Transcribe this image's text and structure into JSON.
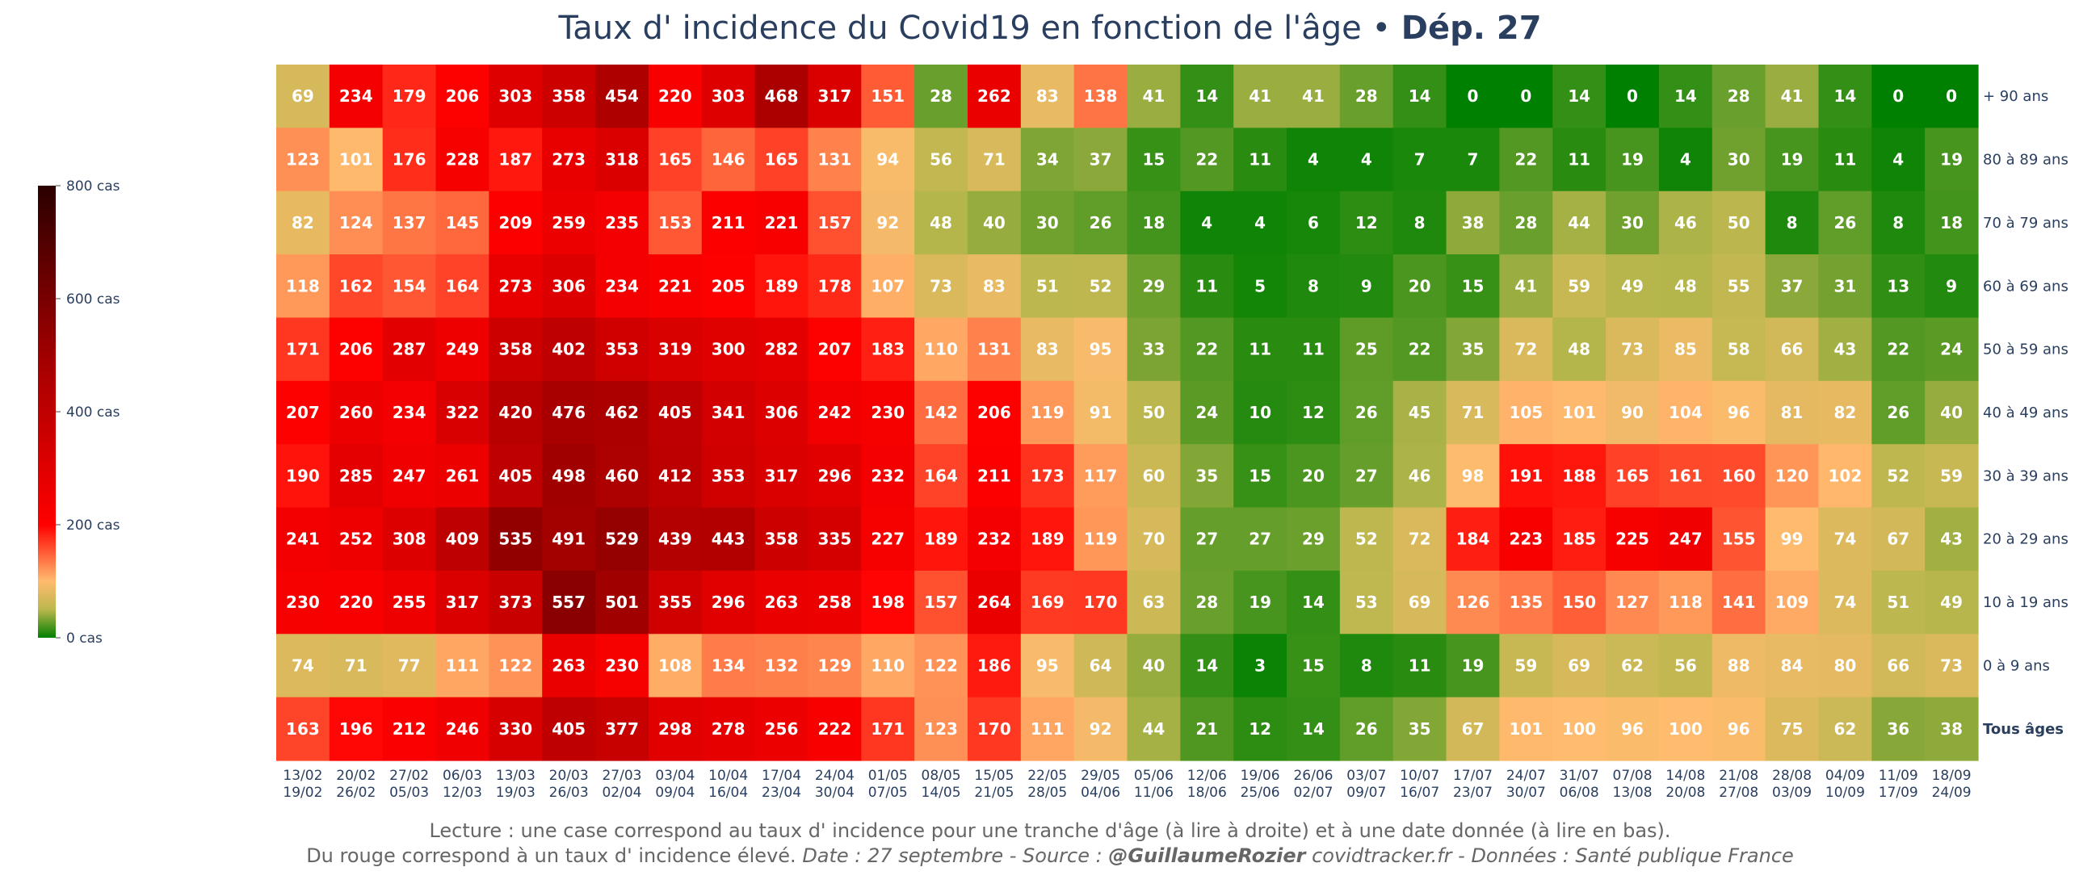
{
  "chart_data": {
    "type": "heatmap",
    "title": "Taux d' incidence du Covid19 en fonction de l'âge",
    "title_separator": "•",
    "title_bold": "Dép. 27",
    "x_labels": [
      [
        "13/02",
        "19/02"
      ],
      [
        "20/02",
        "26/02"
      ],
      [
        "27/02",
        "05/03"
      ],
      [
        "06/03",
        "12/03"
      ],
      [
        "13/03",
        "19/03"
      ],
      [
        "20/03",
        "26/03"
      ],
      [
        "27/03",
        "02/04"
      ],
      [
        "03/04",
        "09/04"
      ],
      [
        "10/04",
        "16/04"
      ],
      [
        "17/04",
        "23/04"
      ],
      [
        "24/04",
        "30/04"
      ],
      [
        "01/05",
        "07/05"
      ],
      [
        "08/05",
        "14/05"
      ],
      [
        "15/05",
        "21/05"
      ],
      [
        "22/05",
        "28/05"
      ],
      [
        "29/05",
        "04/06"
      ],
      [
        "05/06",
        "11/06"
      ],
      [
        "12/06",
        "18/06"
      ],
      [
        "19/06",
        "25/06"
      ],
      [
        "26/06",
        "02/07"
      ],
      [
        "03/07",
        "09/07"
      ],
      [
        "10/07",
        "16/07"
      ],
      [
        "17/07",
        "23/07"
      ],
      [
        "24/07",
        "30/07"
      ],
      [
        "31/07",
        "06/08"
      ],
      [
        "07/08",
        "13/08"
      ],
      [
        "14/08",
        "20/08"
      ],
      [
        "21/08",
        "27/08"
      ],
      [
        "28/08",
        "03/09"
      ],
      [
        "04/09",
        "10/09"
      ],
      [
        "11/09",
        "17/09"
      ],
      [
        "18/09",
        "24/09"
      ]
    ],
    "y_labels": [
      "+ 90 ans",
      "80 à 89 ans",
      "70 à 79 ans",
      "60 à 69 ans",
      "50 à 59 ans",
      "40 à 49 ans",
      "30 à 39 ans",
      "20 à 29 ans",
      "10 à 19 ans",
      "0 à 9 ans",
      "Tous âges"
    ],
    "values": [
      [
        69,
        234,
        179,
        206,
        303,
        358,
        454,
        220,
        303,
        468,
        317,
        151,
        28,
        262,
        83,
        138,
        41,
        14,
        41,
        41,
        28,
        14,
        0,
        0,
        14,
        0,
        14,
        28,
        41,
        14,
        0,
        0
      ],
      [
        123,
        101,
        176,
        228,
        187,
        273,
        318,
        165,
        146,
        165,
        131,
        94,
        56,
        71,
        34,
        37,
        15,
        22,
        11,
        4,
        4,
        7,
        7,
        22,
        11,
        19,
        4,
        30,
        19,
        11,
        4,
        19
      ],
      [
        82,
        124,
        137,
        145,
        209,
        259,
        235,
        153,
        211,
        221,
        157,
        92,
        48,
        40,
        30,
        26,
        18,
        4,
        4,
        6,
        12,
        8,
        38,
        28,
        44,
        30,
        46,
        50,
        8,
        26,
        8,
        18
      ],
      [
        118,
        162,
        154,
        164,
        273,
        306,
        234,
        221,
        205,
        189,
        178,
        107,
        73,
        83,
        51,
        52,
        29,
        11,
        5,
        8,
        9,
        20,
        15,
        41,
        59,
        49,
        48,
        55,
        37,
        31,
        13,
        9
      ],
      [
        171,
        206,
        287,
        249,
        358,
        402,
        353,
        319,
        300,
        282,
        207,
        183,
        110,
        131,
        83,
        95,
        33,
        22,
        11,
        11,
        25,
        22,
        35,
        72,
        48,
        73,
        85,
        58,
        66,
        43,
        22,
        24
      ],
      [
        207,
        260,
        234,
        322,
        420,
        476,
        462,
        405,
        341,
        306,
        242,
        230,
        142,
        206,
        119,
        91,
        50,
        24,
        10,
        12,
        26,
        45,
        71,
        105,
        101,
        90,
        104,
        96,
        81,
        82,
        26,
        40
      ],
      [
        190,
        285,
        247,
        261,
        405,
        498,
        460,
        412,
        353,
        317,
        296,
        232,
        164,
        211,
        173,
        117,
        60,
        35,
        15,
        20,
        27,
        46,
        98,
        191,
        188,
        165,
        161,
        160,
        120,
        102,
        52,
        59
      ],
      [
        241,
        252,
        308,
        409,
        535,
        491,
        529,
        439,
        443,
        358,
        335,
        227,
        189,
        232,
        189,
        119,
        70,
        27,
        27,
        29,
        52,
        72,
        184,
        223,
        185,
        225,
        247,
        155,
        99,
        74,
        67,
        43
      ],
      [
        230,
        220,
        255,
        317,
        373,
        557,
        501,
        355,
        296,
        263,
        258,
        198,
        157,
        264,
        169,
        170,
        63,
        28,
        19,
        14,
        53,
        69,
        126,
        135,
        150,
        127,
        118,
        141,
        109,
        74,
        51,
        49
      ],
      [
        74,
        71,
        77,
        111,
        122,
        263,
        230,
        108,
        134,
        132,
        129,
        110,
        122,
        186,
        95,
        64,
        40,
        14,
        3,
        15,
        8,
        11,
        19,
        59,
        69,
        62,
        56,
        88,
        84,
        80,
        66,
        73
      ],
      [
        163,
        196,
        212,
        246,
        330,
        405,
        377,
        298,
        278,
        256,
        222,
        171,
        123,
        170,
        111,
        92,
        44,
        21,
        12,
        14,
        26,
        35,
        67,
        101,
        100,
        96,
        100,
        96,
        75,
        62,
        36,
        38
      ]
    ],
    "zmin": 0,
    "zmax": 800,
    "colorscale": [
      [
        0,
        "#008000"
      ],
      [
        0.0625,
        "#bbb74e"
      ],
      [
        0.125,
        "#ffbb6e"
      ],
      [
        0.25,
        "#ff0000"
      ],
      [
        0.625,
        "#a00000"
      ],
      [
        1,
        "#2b0000"
      ]
    ],
    "colorbar": {
      "ticks": [
        800,
        600,
        400,
        200,
        0
      ],
      "tick_labels": [
        "800 cas",
        "600 cas",
        "400 cas",
        "200 cas",
        "0 cas"
      ]
    }
  },
  "footer": {
    "line1": "Lecture : une case correspond au taux d' incidence pour une tranche d'âge (à lire à droite) et à une date donnée (à lire en bas).",
    "line2_plain": "Du rouge correspond à un taux d' incidence élevé.",
    "line2_date": "Date : 27 septembre - Source : ",
    "line2_author": "@GuillaumeRozier",
    "line2_rest": " covidtracker.fr - Données : Santé publique France"
  }
}
